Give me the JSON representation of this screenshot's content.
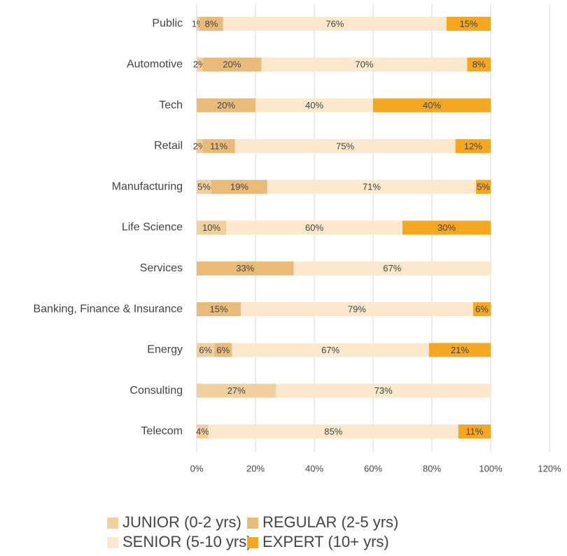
{
  "chart_data": {
    "type": "stacked_bar_horizontal",
    "categories": [
      "Public",
      "Automotive",
      "Tech",
      "Retail",
      "Manufacturing",
      "Life Science",
      "Services",
      "Banking, Finance & Insurance",
      "Energy",
      "Consulting",
      "Telecom"
    ],
    "series": [
      {
        "name": "JUNIOR (0-2 yrs)",
        "color": "#f1cf9f",
        "values": [
          1,
          2,
          null,
          2,
          5,
          10,
          null,
          null,
          6,
          27,
          4
        ],
        "value_labels": [
          "1%",
          "2%",
          null,
          "2%",
          "5%",
          "10%",
          null,
          null,
          "6%",
          "27%",
          "4%"
        ]
      },
      {
        "name": "REGULAR (2-5 yrs)",
        "color": "#e9bb7a",
        "values": [
          8,
          20,
          20,
          11,
          19,
          null,
          33,
          15,
          6,
          null,
          null
        ],
        "value_labels": [
          "8%",
          "20%",
          "20%",
          "11%",
          "19%",
          null,
          "33%",
          "15%",
          "6%",
          null,
          null
        ]
      },
      {
        "name": "SENIOR (5-10 yrs)",
        "color": "#fce8cc",
        "values": [
          76,
          70,
          40,
          75,
          71,
          60,
          67,
          79,
          67,
          73,
          85
        ],
        "value_labels": [
          "76%",
          "70%",
          "40%",
          "75%",
          "71%",
          "60%",
          "67%",
          "79%",
          "67%",
          "73%",
          "85%"
        ]
      },
      {
        "name": "EXPERT (10+ yrs)",
        "color": "#f5a623",
        "values": [
          15,
          8,
          40,
          12,
          5,
          30,
          null,
          6,
          21,
          null,
          11
        ],
        "value_labels": [
          "15%",
          "8%",
          "40%",
          "12%",
          "5%",
          "30%",
          null,
          "6%",
          "21%",
          null,
          "11%"
        ]
      }
    ],
    "xlim": [
      0,
      120
    ],
    "xticks": [
      {
        "value": 0,
        "label": "0%"
      },
      {
        "value": 20,
        "label": "20%"
      },
      {
        "value": 40,
        "label": "40%"
      },
      {
        "value": 60,
        "label": "60%"
      },
      {
        "value": 80,
        "label": "80%"
      },
      {
        "value": 100,
        "label": "100%"
      },
      {
        "value": 120,
        "label": "120%"
      }
    ],
    "grid": true,
    "legend": "bottom"
  }
}
